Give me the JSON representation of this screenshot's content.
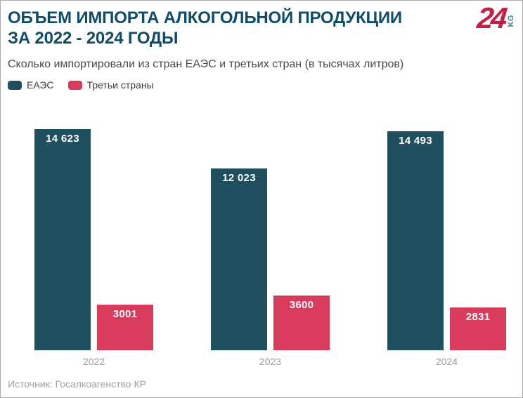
{
  "header": {
    "title_line1": "ОБЪЕМ ИМПОРТА АЛКОГОЛЬНОЙ ПРОДУКЦИИ",
    "title_line2": "ЗА 2022 - 2024 ГОДЫ",
    "title_color": "#0f4c68",
    "subtitle": "Сколько импортировали из стран ЕАЭС и третьих стран (в тысячах литров)"
  },
  "logo": {
    "number": "24",
    "suffix": "KG",
    "number_color": "#c51f45",
    "suffix_color": "#4a7a8a"
  },
  "chart_data": {
    "type": "bar",
    "title": "Объем импорта алкогольной продукции за 2022 - 2024 годы",
    "categories": [
      "2022",
      "2023",
      "2024"
    ],
    "series": [
      {
        "name": "ЕАЭС",
        "color": "#20505f",
        "values": [
          14623,
          12023,
          14493
        ],
        "labels": [
          "14 623",
          "12 023",
          "14 493"
        ]
      },
      {
        "name": "Третьи страны",
        "color": "#d93b5c",
        "values": [
          3001,
          3600,
          2831
        ],
        "labels": [
          "3001",
          "3600",
          "2831"
        ]
      }
    ],
    "ylabel": "тысяч литров",
    "ylim": [
      0,
      14623
    ],
    "grid": false,
    "legend_position": "top-left",
    "value_label_position": "inside-top",
    "axis_label_color": "#9b9b9b"
  },
  "footer": {
    "source": "Источник: Госалкоагенство КР"
  }
}
